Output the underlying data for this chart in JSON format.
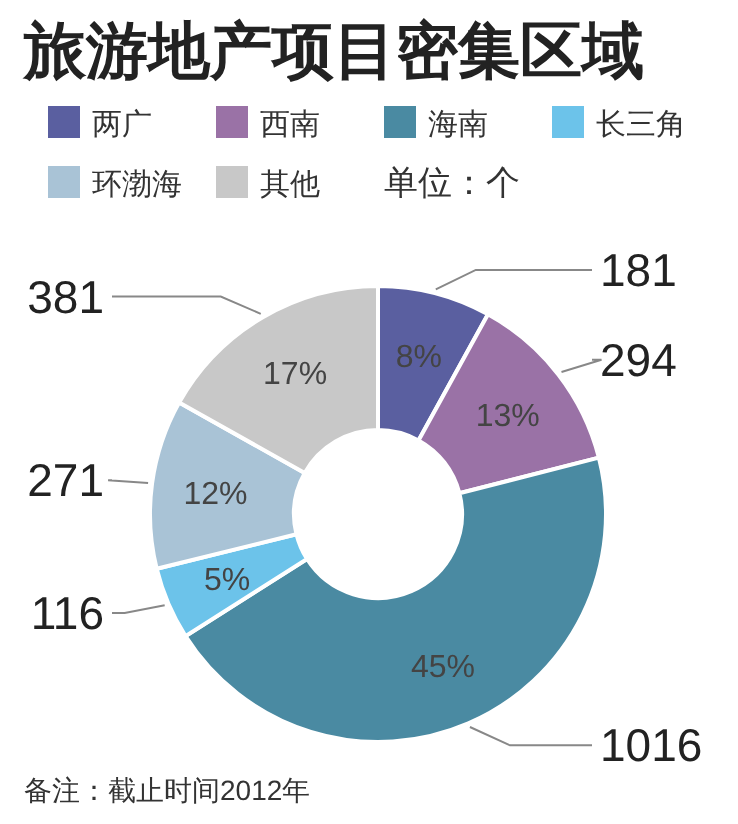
{
  "chart_data": {
    "type": "donut",
    "title": "旅游地产项目密集区域",
    "categories": [
      "两广",
      "西南",
      "海南",
      "长三角",
      "环渤海",
      "其他"
    ],
    "values": [
      181,
      294,
      1016,
      116,
      271,
      381
    ],
    "colors": [
      "#5a5fa0",
      "#9a72a6",
      "#4a8aa2",
      "#6cc3ea",
      "#a9c3d6",
      "#c8c8c8"
    ],
    "data_labels": true,
    "legend": "top",
    "annotations": [
      "单位：个",
      "备注：截止时间2012年",
      {
        "text": "8%",
        "x": "两广"
      },
      {
        "text": "13%",
        "x": "西南"
      },
      {
        "text": "45%",
        "x": "海南"
      },
      {
        "text": "5%",
        "x": "长三角"
      },
      {
        "text": "12%",
        "x": "环渤海"
      },
      {
        "text": "17%",
        "x": "其他"
      }
    ]
  }
}
